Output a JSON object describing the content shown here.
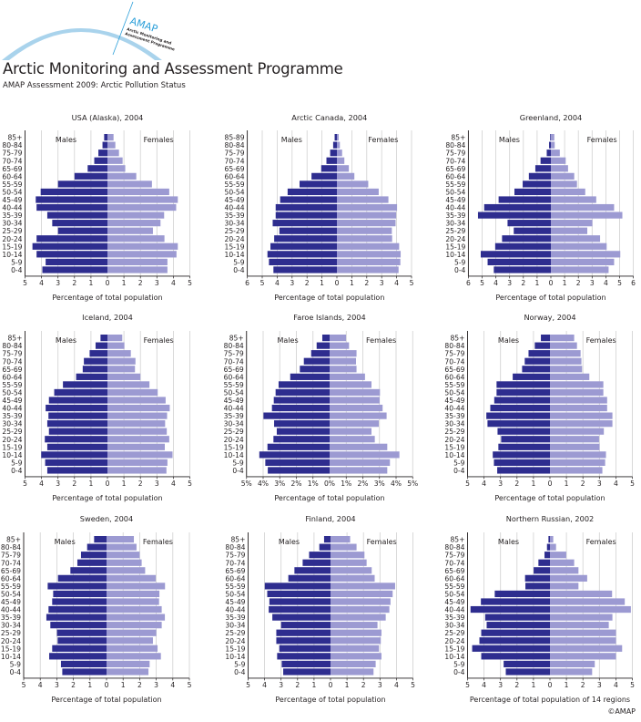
{
  "header": {
    "logo_text": "AMAP",
    "logo_subtext_1": "Arctic Monitoring and",
    "logo_subtext_2": "Assessment Programme",
    "org_title": "Arctic Monitoring and Assessment Programme",
    "report_title": "AMAP Assessment 2009: Arctic Pollution Status"
  },
  "copyright": "©AMAP",
  "colors": {
    "males": "#2e2d8f",
    "females": "#9c9ad2",
    "grid": "#d0d0d0",
    "axis": "#231f20",
    "logo_arc": "#a9d3ec",
    "logo_text": "#2b9fd9"
  },
  "chart_data": [
    {
      "type": "bar",
      "subtype": "population-pyramid",
      "title": "USA (Alaska), 2004",
      "xlabel": "Percentage of total population",
      "left_label": "Males",
      "right_label": "Females",
      "categories": [
        "85+",
        "80-84",
        "75-79",
        "70-74",
        "65-69",
        "60-64",
        "55-59",
        "50-54",
        "45-49",
        "40-44",
        "35-39",
        "30-34",
        "25-29",
        "20-24",
        "15-19",
        "10-14",
        "5-9",
        "0-4"
      ],
      "xlim_left": 5,
      "xlim_right": 5,
      "tick_labels_left": [
        "5",
        "4",
        "3",
        "2",
        "1"
      ],
      "tick_labels_right": [
        "0",
        "1",
        "2",
        "3",
        "4",
        "5"
      ],
      "series": [
        {
          "name": "Males",
          "values": [
            0.2,
            0.3,
            0.55,
            0.8,
            1.2,
            2.0,
            3.0,
            4.05,
            4.35,
            4.3,
            3.65,
            3.35,
            3.0,
            4.3,
            4.55,
            4.3,
            3.75,
            3.95
          ]
        },
        {
          "name": "Females",
          "values": [
            0.37,
            0.48,
            0.7,
            0.92,
            1.08,
            1.75,
            2.7,
            3.75,
            4.27,
            4.17,
            3.44,
            3.22,
            2.76,
            3.46,
            4.27,
            4.19,
            3.64,
            3.64
          ]
        }
      ]
    },
    {
      "type": "bar",
      "subtype": "population-pyramid",
      "title": "Arctic Canada, 2004",
      "xlabel": "Percentage of total population",
      "left_label": "Males",
      "right_label": "Females",
      "categories": [
        "85-89",
        "80-84",
        "75-79",
        "70-74",
        "65-69",
        "60-64",
        "55-59",
        "50-54",
        "45-49",
        "40-44",
        "35-39",
        "30-34",
        "25-29",
        "20-24",
        "15-19",
        "10-14",
        "5-9",
        "0-4"
      ],
      "xlim_left": 6,
      "xlim_right": 5,
      "tick_labels_left": [
        "6",
        "5",
        "4",
        "3",
        "2",
        "1"
      ],
      "tick_labels_right": [
        "0",
        "1",
        "2",
        "3",
        "4",
        "5"
      ],
      "series": [
        {
          "name": "Males",
          "values": [
            0.15,
            0.25,
            0.45,
            0.7,
            1.05,
            1.7,
            2.5,
            3.3,
            3.8,
            4.1,
            4.1,
            4.3,
            3.85,
            4.2,
            4.45,
            4.65,
            4.55,
            4.25
          ]
        },
        {
          "name": "Females",
          "values": [
            0.12,
            0.2,
            0.35,
            0.5,
            0.8,
            1.17,
            2.1,
            2.8,
            3.45,
            4.03,
            3.97,
            3.93,
            3.68,
            3.7,
            4.17,
            4.27,
            4.25,
            4.13
          ]
        }
      ]
    },
    {
      "type": "bar",
      "subtype": "population-pyramid",
      "title": "Greenland, 2004",
      "xlabel": "Percentage of total population",
      "left_label": "Males",
      "right_label": "Females",
      "categories": [
        "85+",
        "80-84",
        "75-79",
        "70-74",
        "65-69",
        "60-64",
        "55-59",
        "50-54",
        "45-49",
        "40-44",
        "35-39",
        "30-34",
        "25-29",
        "20-24",
        "15-19",
        "10-14",
        "5-9",
        "0-4"
      ],
      "xlim_left": 6,
      "xlim_right": 6,
      "tick_labels_left": [
        "6",
        "5",
        "4",
        "3",
        "2",
        "1"
      ],
      "tick_labels_right": [
        "0",
        "1",
        "2",
        "3",
        "4",
        "5",
        "6"
      ],
      "series": [
        {
          "name": "Males",
          "values": [
            0.05,
            0.13,
            0.3,
            0.75,
            1.13,
            1.6,
            2.05,
            2.65,
            3.8,
            4.85,
            5.3,
            3.15,
            2.7,
            3.55,
            4.05,
            5.1,
            4.6,
            4.15
          ]
        },
        {
          "name": "Females",
          "values": [
            0.25,
            0.28,
            0.65,
            1.08,
            1.25,
            1.7,
            1.9,
            2.5,
            3.3,
            4.6,
            5.2,
            3.02,
            2.65,
            3.58,
            4.06,
            5.05,
            4.6,
            4.2
          ]
        }
      ]
    },
    {
      "type": "bar",
      "subtype": "population-pyramid",
      "title": "Iceland, 2004",
      "xlabel": "Percentage of total population",
      "left_label": "Males",
      "right_label": "Females",
      "categories": [
        "85+",
        "80-84",
        "75-79",
        "70-74",
        "65-69",
        "60-64",
        "55-59",
        "50-54",
        "45-49",
        "40-44",
        "35-39",
        "30-34",
        "25-29",
        "20-24",
        "15-19",
        "10-14",
        "5-9",
        "0-4"
      ],
      "xlim_left": 5,
      "xlim_right": 5,
      "tick_labels_left": [
        "5",
        "4",
        "3",
        "2",
        "1"
      ],
      "tick_labels_right": [
        "0",
        "1",
        "2",
        "3",
        "4",
        "5"
      ],
      "series": [
        {
          "name": "Males",
          "values": [
            0.42,
            0.72,
            1.08,
            1.43,
            1.5,
            1.9,
            2.7,
            3.23,
            3.55,
            3.75,
            3.58,
            3.65,
            3.55,
            3.8,
            3.65,
            4.02,
            3.78,
            3.65
          ]
        },
        {
          "name": "Females",
          "values": [
            0.9,
            1.03,
            1.42,
            1.7,
            1.67,
            2.0,
            2.55,
            3.05,
            3.53,
            3.78,
            3.62,
            3.5,
            3.6,
            3.75,
            3.48,
            3.95,
            3.64,
            3.58
          ]
        }
      ]
    },
    {
      "type": "bar",
      "subtype": "population-pyramid",
      "title": "Faroe Islands, 2004",
      "xlabel": "Percentage of total population",
      "left_label": "Males",
      "right_label": "Females",
      "categories": [
        "85+",
        "80-84",
        "75-79",
        "70-74",
        "65-69",
        "60-64",
        "55-59",
        "50-54",
        "45-49",
        "40-44",
        "35-39",
        "30-34",
        "25-29",
        "20-24",
        "15-19",
        "10-14",
        "5-9",
        "0-4"
      ],
      "xlim_left": 5,
      "xlim_right": 5,
      "tick_labels_left": [
        "5%",
        "4%",
        "3%",
        "2%",
        "1%"
      ],
      "tick_labels_right": [
        "0%",
        "1%",
        "2%",
        "3%",
        "4%",
        "5%"
      ],
      "series": [
        {
          "name": "Males",
          "values": [
            0.44,
            0.78,
            1.11,
            1.55,
            1.79,
            2.37,
            3.07,
            3.25,
            3.36,
            3.47,
            3.98,
            3.34,
            3.18,
            3.38,
            3.74,
            4.23,
            3.87,
            3.72
          ]
        },
        {
          "name": "Females",
          "values": [
            0.99,
            1.17,
            1.62,
            1.59,
            1.62,
            2.13,
            2.52,
            3.03,
            3.01,
            3.19,
            3.43,
            2.96,
            2.52,
            2.72,
            3.47,
            4.2,
            3.63,
            3.47
          ]
        }
      ]
    },
    {
      "type": "bar",
      "subtype": "population-pyramid",
      "title": "Norway, 2004",
      "xlabel": "Percentage of total population",
      "left_label": "Males",
      "right_label": "Females",
      "categories": [
        "85+",
        "80-84",
        "75-79",
        "70-74",
        "65-69",
        "60-64",
        "55-59",
        "50-54",
        "45-49",
        "40-44",
        "35-39",
        "30-34",
        "25-29",
        "20-24",
        "15-19",
        "10-14",
        "5-9",
        "0-4"
      ],
      "xlim_left": 5,
      "xlim_right": 5,
      "tick_labels_left": [
        "5",
        "4",
        "3",
        "2",
        "1"
      ],
      "tick_labels_right": [
        "0",
        "1",
        "2",
        "3",
        "4",
        "5"
      ],
      "series": [
        {
          "name": "Males",
          "values": [
            0.55,
            0.92,
            1.3,
            1.53,
            1.69,
            2.26,
            3.24,
            3.24,
            3.38,
            3.62,
            3.86,
            3.79,
            3.18,
            2.96,
            3.13,
            3.47,
            3.4,
            3.2
          ]
        },
        {
          "name": "Females",
          "values": [
            1.47,
            1.64,
            1.86,
            1.91,
            1.95,
            2.39,
            3.24,
            3.24,
            3.47,
            3.47,
            3.79,
            3.79,
            3.27,
            2.98,
            3.01,
            3.4,
            3.35,
            3.18
          ]
        }
      ]
    },
    {
      "type": "bar",
      "subtype": "population-pyramid",
      "title": "Sweden, 2004",
      "xlabel": "Percentage of total population",
      "left_label": "Males",
      "right_label": "Females",
      "categories": [
        "85+",
        "80-84",
        "75-79",
        "70-74",
        "65-69",
        "60-64",
        "55-59",
        "50-54",
        "45-49",
        "40-44",
        "35-39",
        "30-34",
        "25-29",
        "20-24",
        "15-19",
        "10-14",
        "5-9",
        "0-4"
      ],
      "xlim_left": 5,
      "xlim_right": 5,
      "tick_labels_left": [
        "5",
        "4",
        "3",
        "2",
        "1"
      ],
      "tick_labels_right": [
        "0",
        "1",
        "2",
        "3",
        "4",
        "5"
      ],
      "series": [
        {
          "name": "Males",
          "values": [
            0.75,
            1.17,
            1.54,
            1.76,
            2.18,
            2.93,
            3.55,
            3.22,
            3.28,
            3.5,
            3.63,
            3.39,
            2.99,
            2.95,
            3.28,
            3.46,
            2.75,
            2.67
          ]
        },
        {
          "name": "Females",
          "values": [
            1.65,
            1.81,
            2.0,
            2.12,
            2.33,
            2.97,
            3.53,
            3.19,
            3.17,
            3.33,
            3.52,
            3.33,
            3.0,
            2.8,
            3.08,
            3.28,
            2.6,
            2.53
          ]
        }
      ]
    },
    {
      "type": "bar",
      "subtype": "population-pyramid",
      "title": "Finland, 2004",
      "xlabel": "Percentage of total population",
      "left_label": "Males",
      "right_label": "Females",
      "categories": [
        "85+",
        "80-84",
        "75-79",
        "70-74",
        "65-69",
        "60-64",
        "55-59",
        "50-54",
        "45-49",
        "40-44",
        "35-39",
        "30-34",
        "25-29",
        "20-24",
        "15-19",
        "10-14",
        "5-9",
        "0-4"
      ],
      "xlim_left": 5,
      "xlim_right": 5,
      "tick_labels_left": [
        "5",
        "4",
        "3",
        "2",
        "1"
      ],
      "tick_labels_right": [
        "0",
        "1",
        "2",
        "3",
        "4",
        "5"
      ],
      "series": [
        {
          "name": "Males",
          "values": [
            0.39,
            0.68,
            1.3,
            1.69,
            2.19,
            2.56,
            3.99,
            3.84,
            3.71,
            3.75,
            3.53,
            3.0,
            3.29,
            3.29,
            3.11,
            3.24,
            2.96,
            2.87
          ]
        },
        {
          "name": "Females",
          "values": [
            1.19,
            1.58,
            2.06,
            2.19,
            2.5,
            2.68,
            3.92,
            3.77,
            3.64,
            3.57,
            3.35,
            2.85,
            3.09,
            3.05,
            2.94,
            3.09,
            2.74,
            2.61
          ]
        }
      ]
    },
    {
      "type": "bar",
      "subtype": "population-pyramid",
      "title": "Northern Russian, 2002",
      "xlabel": "Percentage of total population of 14 regions",
      "left_label": "Males",
      "right_label": "Females",
      "categories": [
        "85+",
        "80-84",
        "75-79",
        "70-74",
        "65-69",
        "60-64",
        "55-59",
        "50-54",
        "45-49",
        "40-44",
        "35-39",
        "30-34",
        "25-29",
        "20-24",
        "15-19",
        "10-14",
        "5-9",
        "0-4"
      ],
      "xlim_left": 5,
      "xlim_right": 5,
      "tick_labels_left": [
        "5",
        "4",
        "3",
        "2",
        "1"
      ],
      "tick_labels_right": [
        "0",
        "1",
        "2",
        "3",
        "4",
        "5"
      ],
      "series": [
        {
          "name": "Males",
          "values": [
            0.09,
            0.18,
            0.33,
            0.7,
            0.99,
            1.51,
            1.49,
            3.35,
            4.19,
            4.82,
            3.93,
            3.84,
            4.17,
            4.28,
            4.72,
            4.17,
            2.81,
            2.68
          ]
        },
        {
          "name": "Females",
          "values": [
            0.2,
            0.37,
            0.99,
            1.47,
            1.73,
            2.26,
            1.73,
            3.77,
            4.54,
            4.91,
            3.79,
            3.57,
            4.01,
            4.01,
            4.38,
            4.01,
            2.72,
            2.56
          ]
        }
      ]
    }
  ]
}
